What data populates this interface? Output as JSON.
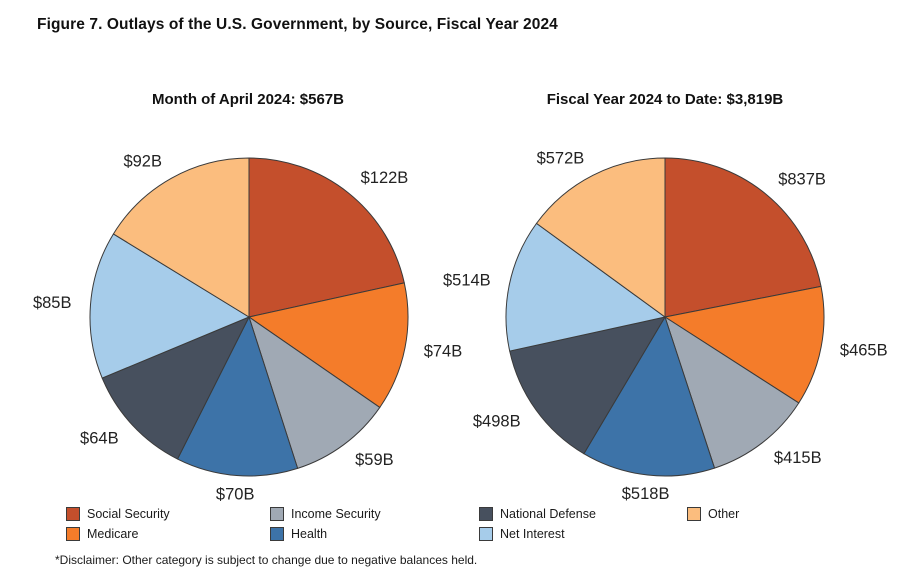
{
  "figure_title": "Figure 7. Outlays of the U.S. Government, by Source, Fiscal Year 2024",
  "disclaimer": "*Disclaimer: Other category is subject to change due to negative balances held.",
  "stroke_color": "#3A3A3A",
  "category_colors": {
    "Social Security": "#C44F2C",
    "Medicare": "#F47C2A",
    "Income Security": "#A0A9B4",
    "Health": "#3D73A8",
    "National Defense": "#47505E",
    "Net Interest": "#A6CCEA",
    "Other": "#FBBD7E"
  },
  "chart_data": [
    {
      "type": "pie",
      "title": "Month of April 2024: $567B",
      "total_label": "$567B",
      "categories": [
        "Social Security",
        "Medicare",
        "Income Security",
        "Health",
        "National Defense",
        "Net Interest",
        "Other"
      ],
      "values": [
        122,
        74,
        59,
        70,
        64,
        85,
        92
      ],
      "value_labels": [
        "$122B",
        "$74B",
        "$59B",
        "$70B",
        "$64B",
        "$85B",
        "$92B"
      ],
      "start_angle": "12-oclock",
      "direction": "clockwise"
    },
    {
      "type": "pie",
      "title": "Fiscal Year 2024 to Date: $3,819B",
      "total_label": "$3,819B",
      "categories": [
        "Social Security",
        "Medicare",
        "Income Security",
        "Health",
        "National Defense",
        "Net Interest",
        "Other"
      ],
      "values": [
        837,
        465,
        415,
        518,
        498,
        514,
        572
      ],
      "value_labels": [
        "$837B",
        "$465B",
        "$415B",
        "$518B",
        "$498B",
        "$514B",
        "$572B"
      ],
      "start_angle": "12-oclock",
      "direction": "clockwise"
    }
  ],
  "legend": {
    "columns": [
      [
        "Social Security",
        "Medicare"
      ],
      [
        "Income Security",
        "Health"
      ],
      [
        "National Defense",
        "Net Interest"
      ],
      [
        "Other"
      ]
    ]
  }
}
